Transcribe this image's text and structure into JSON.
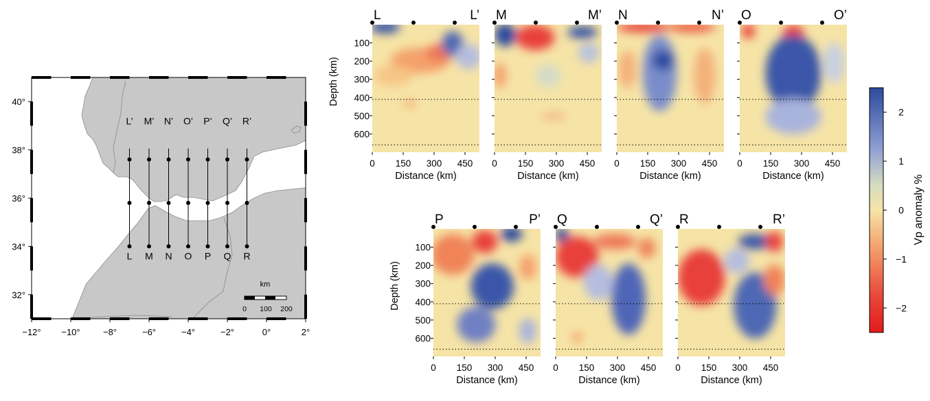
{
  "map": {
    "x_ticks": [
      "−12°",
      "−10°",
      "−8°",
      "−6°",
      "−4°",
      "−2°",
      "0°",
      "2°"
    ],
    "y_ticks": [
      "40°",
      "38°",
      "36°",
      "34°",
      "32°"
    ],
    "x_range": [
      -12,
      2
    ],
    "y_range": [
      31,
      41
    ],
    "profiles": [
      {
        "top": "L’",
        "bottom": "L",
        "lon": -7
      },
      {
        "top": "M’",
        "bottom": "M",
        "lon": -6
      },
      {
        "top": "N’",
        "bottom": "N",
        "lon": -5
      },
      {
        "top": "O’",
        "bottom": "O",
        "lon": -4
      },
      {
        "top": "P’",
        "bottom": "P",
        "lon": -3
      },
      {
        "top": "Q’",
        "bottom": "Q",
        "lon": -2
      },
      {
        "top": "R’",
        "bottom": "R",
        "lon": -1
      }
    ],
    "profile_lat_bottom": 34,
    "profile_lat_top": 37.6,
    "profile_dot_lats": [
      34,
      35.8,
      37.6
    ],
    "scalebar": {
      "unit": "km",
      "labels": [
        "0",
        "100",
        "200"
      ]
    },
    "colors": {
      "land": "#c8c8c8",
      "sea": "#ffffff"
    }
  },
  "sections": {
    "ylabel": "Depth (km)",
    "xlabel": "Distance (km)",
    "y_ticks": [
      "100",
      "200",
      "300",
      "400",
      "500",
      "600"
    ],
    "x_ticks": [
      "0",
      "150",
      "300",
      "450"
    ],
    "depth_range": [
      0,
      700
    ],
    "distance_range": [
      0,
      520
    ],
    "reference_depths": [
      410,
      660
    ],
    "station_dots_km": [
      0,
      200,
      400
    ],
    "panels": [
      {
        "left": "L",
        "right": "L’"
      },
      {
        "left": "M",
        "right": "M’"
      },
      {
        "left": "N",
        "right": "N’"
      },
      {
        "left": "O",
        "right": "O’"
      },
      {
        "left": "P",
        "right": "P’"
      },
      {
        "left": "Q",
        "right": "Q’"
      },
      {
        "left": "R",
        "right": "R’"
      }
    ]
  },
  "colorbar": {
    "label": "Vp anomaly %",
    "ticks": [
      "2",
      "1",
      "0",
      "−1",
      "−2"
    ],
    "range": [
      -2.5,
      2.5
    ]
  }
}
